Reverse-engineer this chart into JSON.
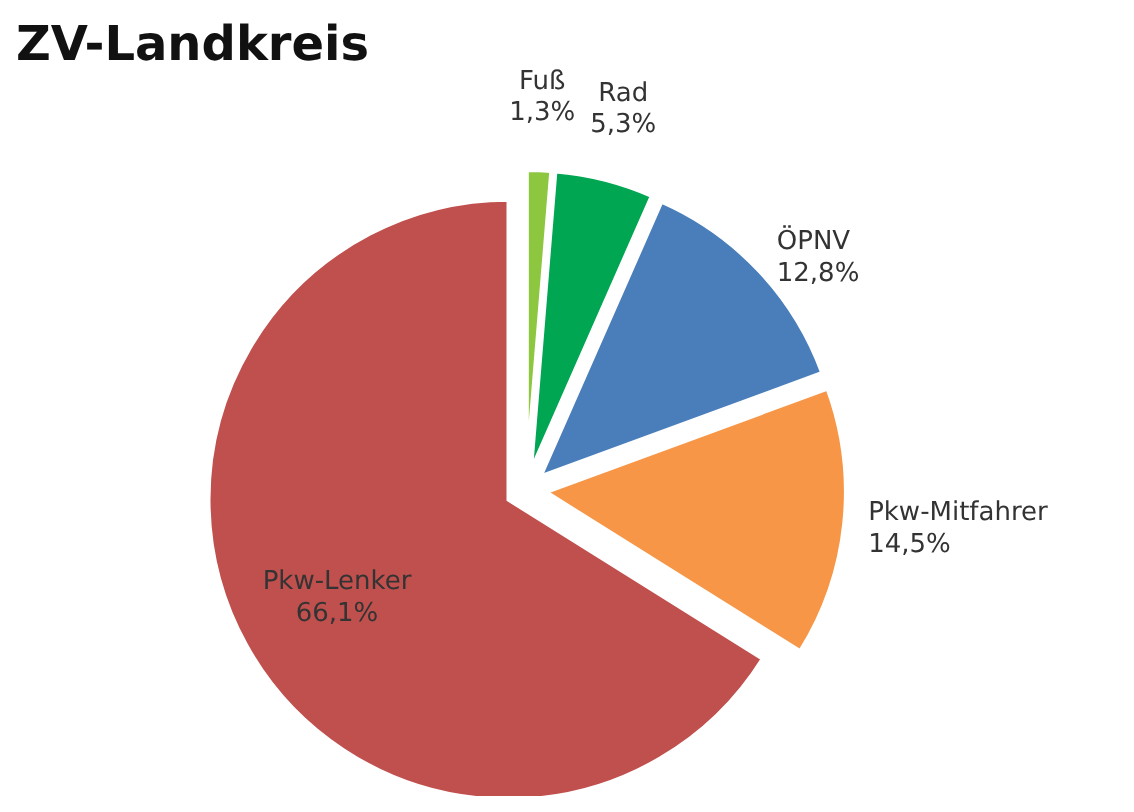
{
  "chart_data": {
    "type": "pie",
    "title": "ZV-Landkreis",
    "categories": [
      "Fuß",
      "Rad",
      "ÖPNV",
      "Pkw-Mitfahrer",
      "Pkw-Lenker"
    ],
    "values": [
      1.3,
      5.3,
      12.8,
      14.5,
      66.1
    ],
    "value_labels": [
      "1,3%",
      "5,3%",
      "12,8%",
      "14,5%",
      "66,1%"
    ],
    "colors": [
      "#8dc63f",
      "#00a651",
      "#4a7ebb",
      "#f79646",
      "#c0504d"
    ]
  }
}
